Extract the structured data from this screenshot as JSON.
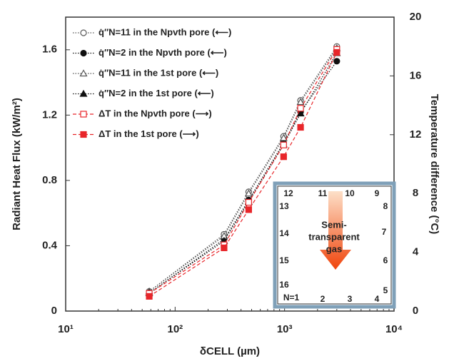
{
  "chart_data": {
    "type": "line",
    "x_label": "δCELL (µm)",
    "y_label": "Radiant Heat Flux (kW/m²)",
    "y2_label": "Temperature difference (°C)",
    "log_x": true,
    "xlim": [
      10,
      10000
    ],
    "xticks": [
      {
        "value": 10,
        "label": "10¹"
      },
      {
        "value": 100,
        "label": "10²"
      },
      {
        "value": 1000,
        "label": "10³"
      },
      {
        "value": 10000,
        "label": "10⁴"
      }
    ],
    "ylim": [
      0,
      1.8
    ],
    "yticks": [
      0,
      0.4,
      0.8,
      1.2,
      1.6
    ],
    "y2lim": [
      0,
      20
    ],
    "y2ticks": [
      0,
      4,
      8,
      12,
      16,
      20
    ],
    "x": [
      58,
      280,
      470,
      980,
      1400,
      3000
    ],
    "series": [
      {
        "name": "q̇″N=11 in the Npvth pore (⟵)",
        "color": "#555555",
        "marker": "circle-open",
        "dash": "dotted",
        "values": [
          0.12,
          0.47,
          0.73,
          1.07,
          1.29,
          1.62
        ]
      },
      {
        "name": "q̇″N=2 in the Npvth pore (⟵)",
        "color": "#111111",
        "marker": "circle",
        "dash": "dotted",
        "values": [
          0.11,
          0.44,
          0.68,
          1.03,
          1.22,
          1.53
        ]
      },
      {
        "name": "q̇″N=11 in the 1st pore (⟵)",
        "color": "#555555",
        "marker": "triangle-open",
        "dash": "dotted",
        "values": [
          0.12,
          0.46,
          0.72,
          1.06,
          1.28,
          1.61
        ]
      },
      {
        "name": "q̇″N=2 in the 1st pore (⟵)",
        "color": "#111111",
        "marker": "triangle",
        "dash": "dotted",
        "values": [
          0.11,
          0.43,
          0.67,
          1.02,
          1.21,
          1.58
        ]
      },
      {
        "name": "ΔT in the Npvth pore (⟶)",
        "color": "#e8262a",
        "marker": "square-open",
        "dash": "dashed",
        "axis": "y2",
        "values": [
          1.2,
          4.5,
          7.4,
          11.3,
          13.8,
          17.8
        ]
      },
      {
        "name": "ΔT in the 1st pore (⟶)",
        "color": "#e8262a",
        "marker": "square",
        "dash": "dashed",
        "axis": "y2",
        "values": [
          1.0,
          4.3,
          6.9,
          10.5,
          12.5,
          17.6
        ]
      }
    ],
    "inset_labels": [
      "N=1",
      "2",
      "3",
      "4",
      "5",
      "6",
      "7",
      "8",
      "9",
      "10",
      "11",
      "12",
      "13",
      "14",
      "15",
      "16"
    ],
    "inset_text": [
      "Semi-",
      "transparent",
      "gas"
    ]
  }
}
